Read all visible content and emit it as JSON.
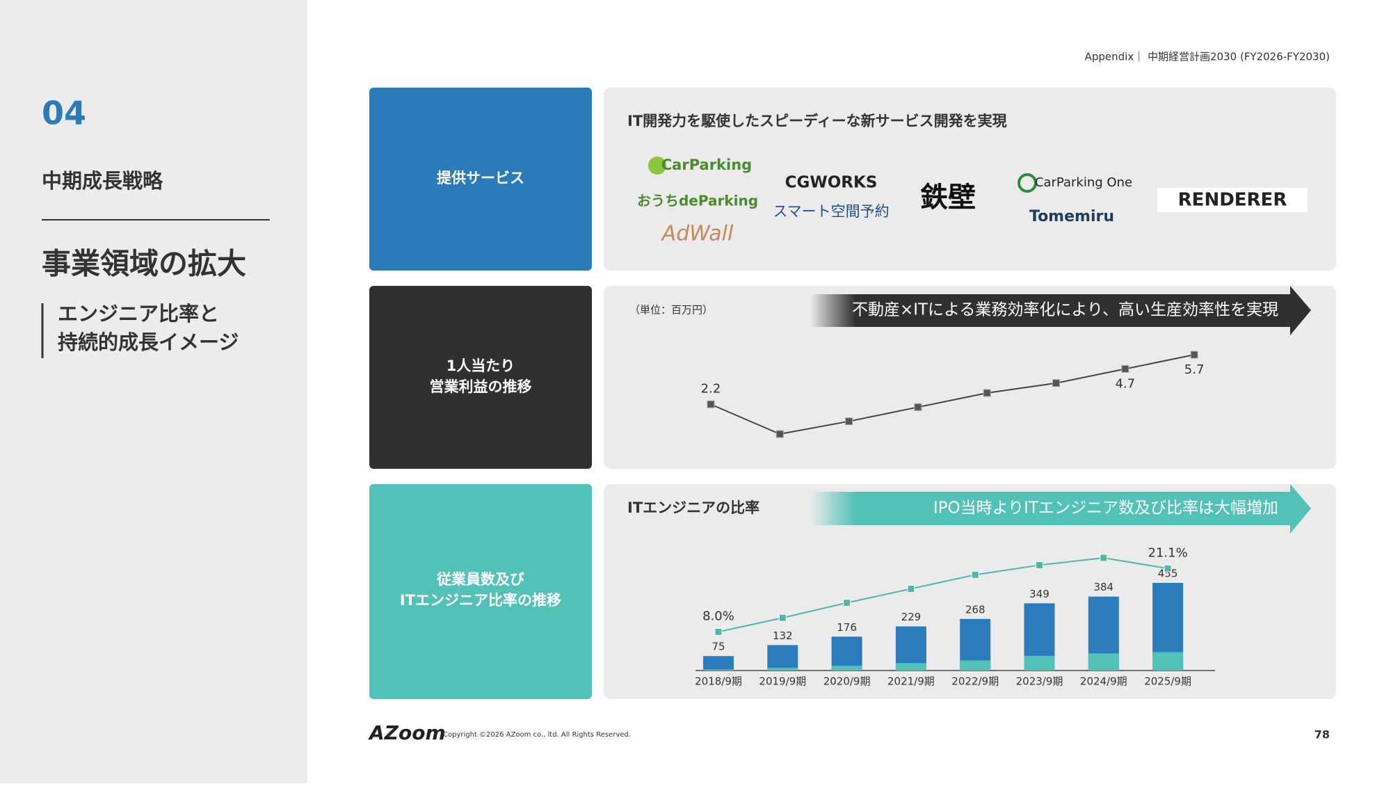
{
  "header": {
    "breadcrumb": "Appendix｜ 中期経営計画2030 (FY2026-FY2030)"
  },
  "sidebar": {
    "number": "04",
    "section": "中期成長戦略",
    "title": "事業領域の拡大",
    "subtitle": [
      "エンジニア比率と",
      "持続的成長イメージ"
    ]
  },
  "service_row": {
    "label": [
      "提供サービス"
    ],
    "heading": "IT開発力を駆使したスピーディーな新サービス開発を実現",
    "logos": [
      "CarParking",
      "おうちdeParking",
      "AdWall",
      "CGWORKS",
      "スマート空間予約",
      "鉄壁",
      "CarParking One",
      "Tomemiru",
      "RENDERER"
    ]
  },
  "profit_row": {
    "label": [
      "1人当たり",
      "営業利益の推移"
    ]
  },
  "engineer_row": {
    "label": [
      "従業員数及び",
      "ITエンジニア比率の推移"
    ]
  },
  "chart_data": [
    {
      "type": "line",
      "unit_note": "（単位：百万円）",
      "annotation": "不動産×ITによる業務効率化により、高い生産効率性を実現",
      "color": "#444444",
      "values": [
        2.2,
        0.1,
        1.0,
        2.0,
        3.0,
        3.7,
        4.7,
        5.7
      ],
      "value_labels": [
        "2.2",
        null,
        null,
        null,
        null,
        null,
        "4.7",
        "5.7"
      ]
    },
    {
      "type": "bar",
      "title": "ITエンジニアの比率",
      "annotation": "IPO当時よりITエンジニア数及び比率は大幅増加",
      "categories": [
        "2018/9期",
        "2019/9期",
        "2020/9期",
        "2021/9期",
        "2022/9期",
        "2023/9期",
        "2024/9期",
        "2025/9期"
      ],
      "series": [
        {
          "type": "bar",
          "color": "#2b7bbd",
          "values": [
            75,
            132,
            176,
            229,
            268,
            349,
            384,
            455
          ]
        },
        {
          "type": "bar",
          "color": "#52c1b8",
          "values": [
            6,
            14,
            25,
            39,
            53,
            76,
            89,
            96
          ]
        },
        {
          "type": "line",
          "axis": "y2",
          "color": "#52b5aa",
          "values": [
            8.0,
            10.9,
            14.0,
            16.9,
            19.8,
            21.8,
            23.3,
            21.1
          ],
          "value_labels": [
            "8.0%",
            null,
            null,
            null,
            null,
            null,
            null,
            "21.1%"
          ]
        }
      ]
    }
  ],
  "footer": {
    "logo": "AZoom",
    "copyright": "Copyright ©2026 AZoom co., ltd. All Rights Reserved.",
    "page": 78
  }
}
